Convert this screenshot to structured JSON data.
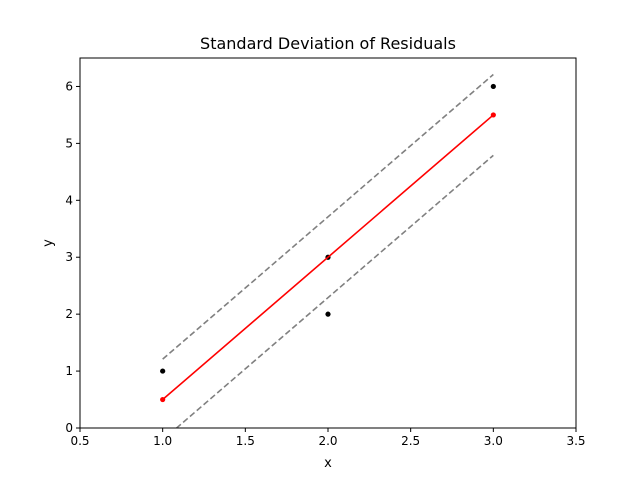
{
  "chart_data": {
    "type": "line",
    "title": "Standard Deviation of Residuals",
    "xlabel": "x",
    "ylabel": "y",
    "xlim": [
      0.5,
      3.5
    ],
    "ylim": [
      0,
      6.5
    ],
    "xticks": [
      "0.5",
      "1.0",
      "1.5",
      "2.0",
      "2.5",
      "3.0",
      "3.5"
    ],
    "yticks": [
      "0",
      "1",
      "2",
      "3",
      "4",
      "5",
      "6"
    ],
    "grid": false,
    "legend": "none",
    "series": [
      {
        "kind": "scatter",
        "color": "#000000",
        "x": [
          1.0,
          2.0,
          2.0,
          3.0
        ],
        "y": [
          1.0,
          3.0,
          2.0,
          6.0
        ]
      },
      {
        "kind": "line",
        "color": "#ff0000",
        "markers": true,
        "x": [
          1.0,
          3.0
        ],
        "y": [
          0.5,
          5.5
        ]
      },
      {
        "kind": "line",
        "color": "#808080",
        "dashed": true,
        "x": [
          1.0,
          3.0
        ],
        "y": [
          1.21,
          6.21
        ]
      },
      {
        "kind": "line",
        "color": "#808080",
        "dashed": true,
        "x": [
          1.0,
          3.0
        ],
        "y": [
          -0.21,
          4.79
        ]
      }
    ]
  }
}
